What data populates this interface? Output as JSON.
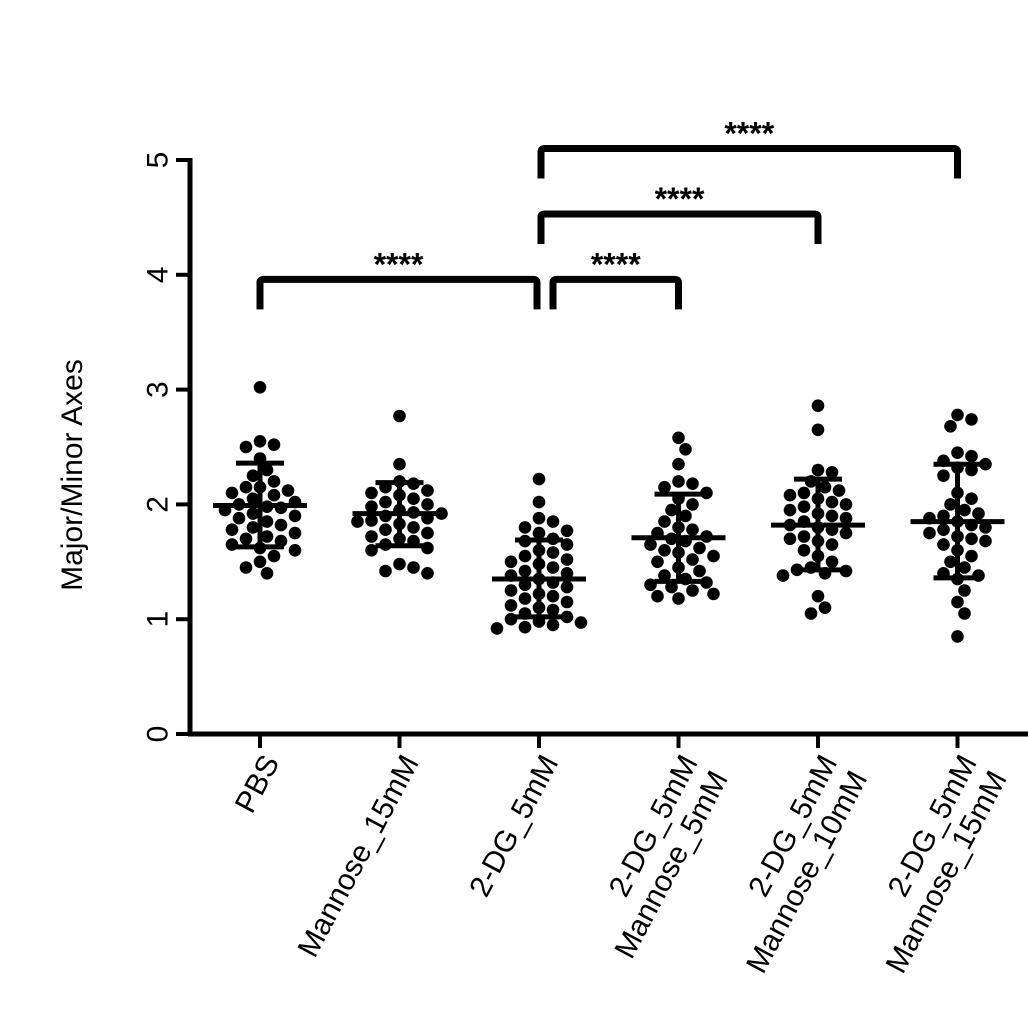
{
  "chart_data": {
    "type": "scatter",
    "title": "",
    "xlabel": "",
    "ylabel": "Major/Minor Axes",
    "ylim": [
      0,
      5
    ],
    "yticks": [
      0,
      1,
      2,
      3,
      4,
      5
    ],
    "grid": false,
    "legend": "none",
    "categories": [
      [
        "PBS"
      ],
      [
        "Mannose_15mM"
      ],
      [
        "2-DG_5mM"
      ],
      [
        "2-DG_5mM",
        "Mannose_5mM"
      ],
      [
        "2-DG_5mM",
        "Mannose_10mM"
      ],
      [
        "2-DG_5mM",
        "Mannose_15mM"
      ]
    ],
    "summary": [
      {
        "mean": 1.99,
        "sd_low": 1.63,
        "sd_high": 2.36
      },
      {
        "mean": 1.92,
        "sd_low": 1.64,
        "sd_high": 2.19
      },
      {
        "mean": 1.35,
        "sd_low": 1.02,
        "sd_high": 1.69
      },
      {
        "mean": 1.71,
        "sd_low": 1.33,
        "sd_high": 2.09
      },
      {
        "mean": 1.82,
        "sd_low": 1.43,
        "sd_high": 2.22
      },
      {
        "mean": 1.85,
        "sd_low": 1.36,
        "sd_high": 2.35
      }
    ],
    "series": [
      {
        "name": "PBS",
        "values": [
          3.02,
          2.55,
          2.52,
          2.5,
          2.4,
          2.3,
          2.25,
          2.2,
          2.15,
          2.15,
          2.12,
          2.1,
          2.08,
          2.05,
          2.02,
          2.0,
          1.98,
          1.97,
          1.95,
          1.92,
          1.9,
          1.88,
          1.85,
          1.82,
          1.8,
          1.78,
          1.75,
          1.72,
          1.7,
          1.68,
          1.65,
          1.62,
          1.6,
          1.55,
          1.5,
          1.45,
          1.4
        ]
      },
      {
        "name": "Mannose_15mM",
        "values": [
          2.77,
          2.35,
          2.2,
          2.18,
          2.15,
          2.12,
          2.1,
          2.08,
          2.05,
          2.02,
          2.0,
          1.98,
          1.95,
          1.93,
          1.92,
          1.9,
          1.88,
          1.86,
          1.85,
          1.83,
          1.8,
          1.78,
          1.75,
          1.72,
          1.7,
          1.68,
          1.65,
          1.62,
          1.6,
          1.48,
          1.45,
          1.42,
          1.4
        ]
      },
      {
        "name": "2-DG_5mM",
        "values": [
          2.22,
          2.02,
          1.88,
          1.85,
          1.8,
          1.77,
          1.75,
          1.7,
          1.68,
          1.65,
          1.6,
          1.58,
          1.55,
          1.52,
          1.5,
          1.48,
          1.45,
          1.42,
          1.4,
          1.38,
          1.35,
          1.32,
          1.3,
          1.28,
          1.25,
          1.22,
          1.2,
          1.18,
          1.15,
          1.12,
          1.1,
          1.08,
          1.05,
          1.02,
          1.0,
          0.98,
          0.97,
          0.95,
          0.93,
          0.92
        ]
      },
      {
        "name": "2-DG_5mM Mannose_5mM",
        "values": [
          2.58,
          2.48,
          2.35,
          2.2,
          2.18,
          2.15,
          2.1,
          2.05,
          2.0,
          1.95,
          1.9,
          1.85,
          1.8,
          1.78,
          1.75,
          1.72,
          1.7,
          1.68,
          1.65,
          1.62,
          1.6,
          1.58,
          1.55,
          1.52,
          1.5,
          1.45,
          1.42,
          1.38,
          1.35,
          1.32,
          1.3,
          1.28,
          1.25,
          1.22,
          1.2,
          1.18
        ]
      },
      {
        "name": "2-DG_5mM Mannose_10mM",
        "values": [
          2.86,
          2.65,
          2.3,
          2.28,
          2.2,
          2.15,
          2.12,
          2.1,
          2.08,
          2.05,
          2.02,
          2.0,
          1.98,
          1.95,
          1.92,
          1.9,
          1.88,
          1.85,
          1.82,
          1.8,
          1.78,
          1.75,
          1.72,
          1.7,
          1.68,
          1.65,
          1.6,
          1.55,
          1.5,
          1.45,
          1.43,
          1.42,
          1.4,
          1.38,
          1.2,
          1.1,
          1.05
        ]
      },
      {
        "name": "2-DG_5mM Mannose_15mM",
        "values": [
          2.78,
          2.74,
          2.68,
          2.45,
          2.42,
          2.38,
          2.35,
          2.32,
          2.3,
          2.25,
          2.1,
          2.05,
          2.0,
          1.95,
          1.92,
          1.9,
          1.88,
          1.85,
          1.82,
          1.8,
          1.78,
          1.75,
          1.72,
          1.7,
          1.68,
          1.65,
          1.6,
          1.55,
          1.5,
          1.45,
          1.4,
          1.38,
          1.35,
          1.25,
          1.15,
          1.05,
          0.85
        ]
      }
    ],
    "significance": [
      {
        "from": 0,
        "to": 2,
        "label": "****",
        "level": 3.96
      },
      {
        "from": 2,
        "to": 3,
        "label": "****",
        "level": 3.96
      },
      {
        "from": 2,
        "to": 4,
        "label": "****",
        "level": 4.53
      },
      {
        "from": 2,
        "to": 5,
        "label": "****",
        "level": 5.1
      }
    ]
  }
}
